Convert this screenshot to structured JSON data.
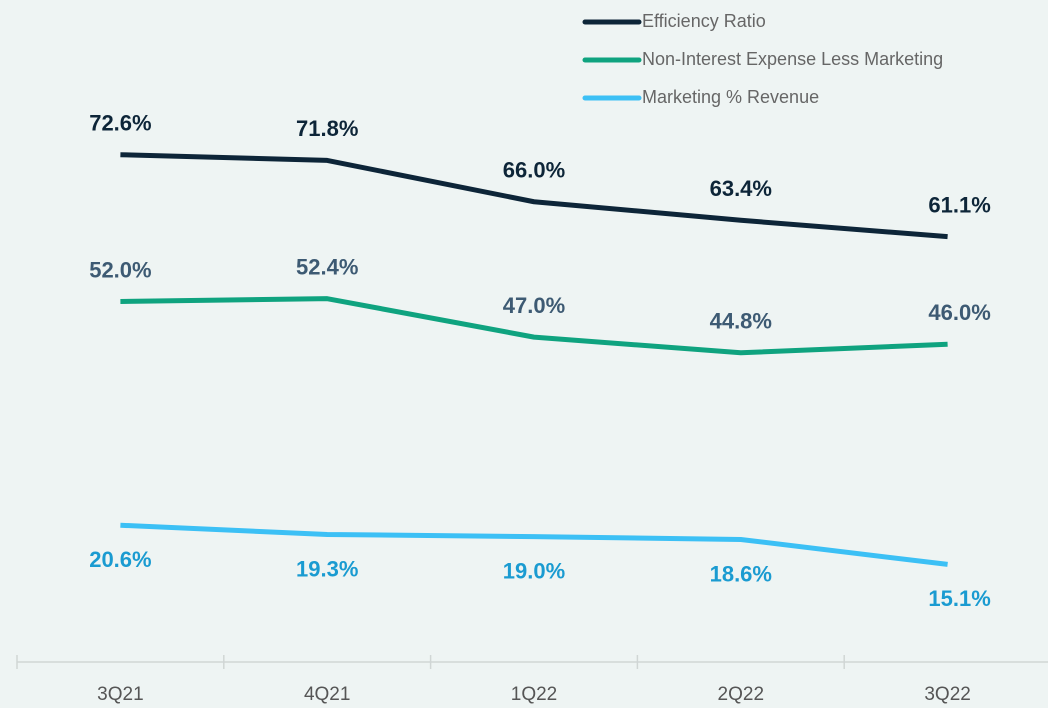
{
  "chart_data": {
    "type": "line",
    "categories": [
      "3Q21",
      "4Q21",
      "1Q22",
      "2Q22",
      "3Q22"
    ],
    "ylim": [
      0,
      80
    ],
    "legend": "top-right",
    "series": [
      {
        "name": "Efficiency Ratio",
        "color": "#0d2538",
        "label_color": "#0d2538",
        "values": [
          72.6,
          71.8,
          66.0,
          63.4,
          61.1
        ],
        "value_labels": [
          "72.6%",
          "71.8%",
          "66.0%",
          "63.4%",
          "61.1%"
        ]
      },
      {
        "name": "Non-Interest Expense Less Marketing",
        "color": "#0fa37f",
        "label_color": "#3d5a73",
        "values": [
          52.0,
          52.4,
          47.0,
          44.8,
          46.0
        ],
        "value_labels": [
          "52.0%",
          "52.4%",
          "47.0%",
          "44.8%",
          "46.0%"
        ]
      },
      {
        "name": "Marketing % Revenue",
        "color": "#3cc0f5",
        "label_color": "#1a9bd1",
        "values": [
          20.6,
          19.3,
          19.0,
          18.6,
          15.1
        ],
        "value_labels": [
          "20.6%",
          "19.3%",
          "19.0%",
          "18.6%",
          "15.1%"
        ]
      }
    ]
  }
}
